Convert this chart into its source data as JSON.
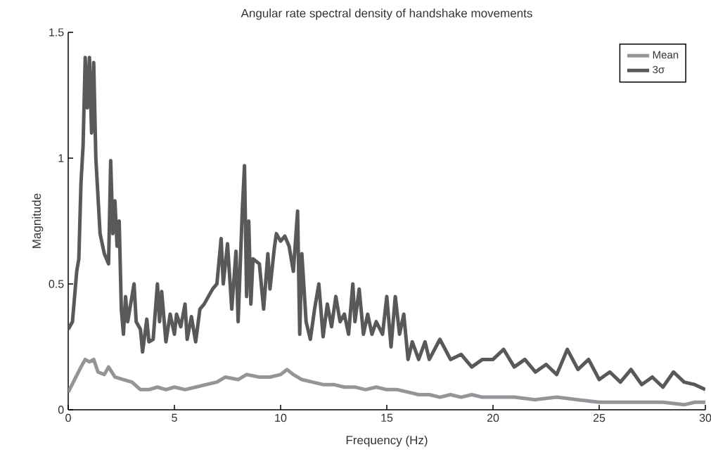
{
  "chart_data": {
    "type": "line",
    "title": "Angular rate spectral density of handshake movements",
    "xlabel": "Frequency (Hz)",
    "ylabel": "Magnitude",
    "xlim": [
      0,
      30
    ],
    "ylim": [
      0,
      1.5
    ],
    "xticks": [
      0,
      5,
      10,
      15,
      20,
      25,
      30
    ],
    "yticks": [
      0,
      0.5,
      1,
      1.5
    ],
    "grid": false,
    "legend": "top right",
    "marker": "none",
    "line_style": "solid",
    "series": [
      {
        "name": "Mean",
        "color": "#939598",
        "x": [
          0,
          0.3,
          0.6,
          0.8,
          1.0,
          1.2,
          1.4,
          1.7,
          1.9,
          2.2,
          2.6,
          3.0,
          3.4,
          3.8,
          4.2,
          4.6,
          5.0,
          5.5,
          6.0,
          6.5,
          7.0,
          7.4,
          8.0,
          8.4,
          9.0,
          9.5,
          10.0,
          10.3,
          10.6,
          11.0,
          11.5,
          12.0,
          12.5,
          13.0,
          13.5,
          14.0,
          14.5,
          15.0,
          15.5,
          16.0,
          16.5,
          17.0,
          17.5,
          18.0,
          18.5,
          19.0,
          19.5,
          20.0,
          21,
          22,
          23,
          24,
          25,
          26,
          27,
          28,
          29,
          29.5,
          30
        ],
        "values": [
          0.07,
          0.12,
          0.17,
          0.2,
          0.19,
          0.2,
          0.15,
          0.14,
          0.17,
          0.13,
          0.12,
          0.11,
          0.08,
          0.08,
          0.09,
          0.08,
          0.09,
          0.08,
          0.09,
          0.1,
          0.11,
          0.13,
          0.12,
          0.14,
          0.13,
          0.13,
          0.14,
          0.16,
          0.14,
          0.12,
          0.11,
          0.1,
          0.1,
          0.09,
          0.09,
          0.08,
          0.09,
          0.08,
          0.08,
          0.07,
          0.06,
          0.06,
          0.05,
          0.06,
          0.05,
          0.06,
          0.05,
          0.05,
          0.05,
          0.04,
          0.05,
          0.04,
          0.03,
          0.03,
          0.03,
          0.03,
          0.02,
          0.03,
          0.03
        ]
      },
      {
        "name": "3σ",
        "color": "#58595b",
        "x": [
          0,
          0.2,
          0.3,
          0.4,
          0.5,
          0.6,
          0.7,
          0.8,
          0.9,
          1.0,
          1.1,
          1.2,
          1.3,
          1.4,
          1.5,
          1.7,
          1.9,
          2.0,
          2.1,
          2.2,
          2.3,
          2.4,
          2.5,
          2.6,
          2.7,
          2.8,
          3.0,
          3.1,
          3.2,
          3.4,
          3.5,
          3.7,
          3.8,
          4.0,
          4.2,
          4.3,
          4.4,
          4.6,
          4.8,
          5.0,
          5.1,
          5.3,
          5.5,
          5.6,
          5.8,
          6.0,
          6.2,
          6.4,
          6.6,
          6.8,
          7.0,
          7.2,
          7.3,
          7.5,
          7.7,
          7.9,
          8.0,
          8.2,
          8.3,
          8.4,
          8.5,
          8.6,
          8.7,
          9.0,
          9.2,
          9.4,
          9.5,
          9.7,
          9.8,
          10.0,
          10.2,
          10.4,
          10.6,
          10.8,
          10.9,
          11.0,
          11.2,
          11.4,
          11.6,
          11.8,
          12.0,
          12.2,
          12.4,
          12.6,
          12.8,
          13.0,
          13.2,
          13.4,
          13.5,
          13.7,
          13.9,
          14.1,
          14.3,
          14.5,
          14.8,
          15.0,
          15.2,
          15.4,
          15.6,
          15.8,
          16.0,
          16.2,
          16.5,
          16.8,
          17.0,
          17.5,
          18.0,
          18.5,
          19.0,
          19.5,
          20.0,
          20.5,
          21.0,
          21.5,
          22.0,
          22.5,
          23.0,
          23.5,
          24.0,
          24.5,
          25.0,
          25.5,
          26.0,
          26.5,
          27.0,
          27.5,
          28.0,
          28.5,
          29.0,
          29.5,
          30.0
        ],
        "values": [
          0.32,
          0.35,
          0.45,
          0.55,
          0.6,
          0.9,
          1.05,
          1.4,
          1.2,
          1.4,
          1.1,
          1.38,
          1.0,
          0.85,
          0.7,
          0.62,
          0.58,
          0.99,
          0.7,
          0.83,
          0.65,
          0.75,
          0.4,
          0.3,
          0.45,
          0.35,
          0.45,
          0.5,
          0.35,
          0.32,
          0.23,
          0.36,
          0.27,
          0.28,
          0.5,
          0.35,
          0.47,
          0.27,
          0.38,
          0.3,
          0.38,
          0.33,
          0.42,
          0.28,
          0.37,
          0.27,
          0.4,
          0.42,
          0.45,
          0.48,
          0.5,
          0.68,
          0.5,
          0.66,
          0.4,
          0.63,
          0.35,
          0.8,
          0.97,
          0.45,
          0.75,
          0.42,
          0.6,
          0.58,
          0.4,
          0.62,
          0.48,
          0.64,
          0.7,
          0.67,
          0.69,
          0.65,
          0.55,
          0.79,
          0.3,
          0.62,
          0.35,
          0.28,
          0.4,
          0.5,
          0.29,
          0.42,
          0.33,
          0.45,
          0.35,
          0.38,
          0.3,
          0.5,
          0.35,
          0.48,
          0.3,
          0.38,
          0.3,
          0.35,
          0.3,
          0.45,
          0.25,
          0.45,
          0.3,
          0.38,
          0.2,
          0.27,
          0.2,
          0.27,
          0.2,
          0.28,
          0.2,
          0.22,
          0.17,
          0.2,
          0.2,
          0.24,
          0.17,
          0.2,
          0.15,
          0.18,
          0.14,
          0.24,
          0.16,
          0.2,
          0.12,
          0.15,
          0.11,
          0.16,
          0.1,
          0.13,
          0.09,
          0.15,
          0.11,
          0.1,
          0.08
        ]
      }
    ]
  }
}
